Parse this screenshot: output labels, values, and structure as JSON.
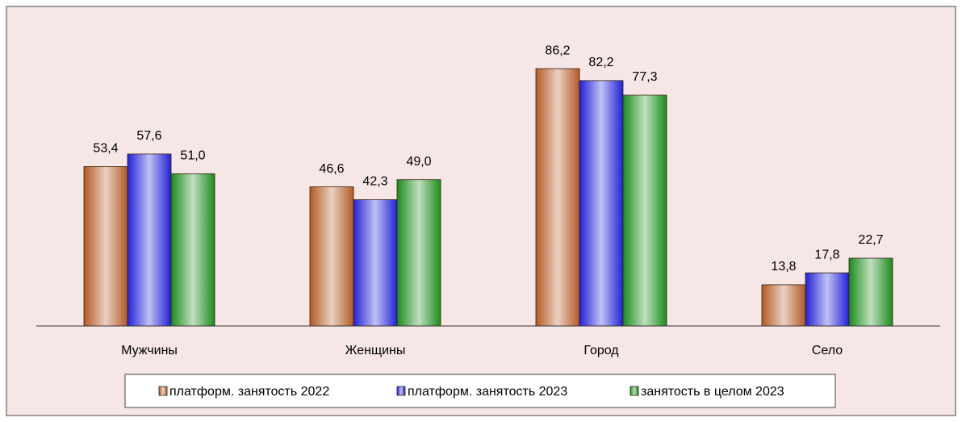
{
  "chart_data": {
    "type": "bar",
    "categories": [
      "Мужчины",
      "Женщины",
      "Город",
      "Село"
    ],
    "series": [
      {
        "name": "платформ. занятость 2022",
        "color": "#b35a24",
        "values": [
          53.4,
          46.6,
          86.2,
          13.8
        ],
        "value_labels": [
          "53,4",
          "46,6",
          "86,2",
          "13,8"
        ]
      },
      {
        "name": "платформ. занятость 2023",
        "color": "#2020d8",
        "values": [
          57.6,
          42.3,
          82.2,
          17.8
        ],
        "value_labels": [
          "57,6",
          "42,3",
          "82,2",
          "17,8"
        ]
      },
      {
        "name": "занятость в целом 2023",
        "color": "#1c8c1c",
        "values": [
          51.0,
          49.0,
          77.3,
          22.7
        ],
        "value_labels": [
          "51,0",
          "49,0",
          "77,3",
          "22,7"
        ]
      }
    ],
    "ylim": [
      0,
      100
    ],
    "legend": "bottom"
  }
}
